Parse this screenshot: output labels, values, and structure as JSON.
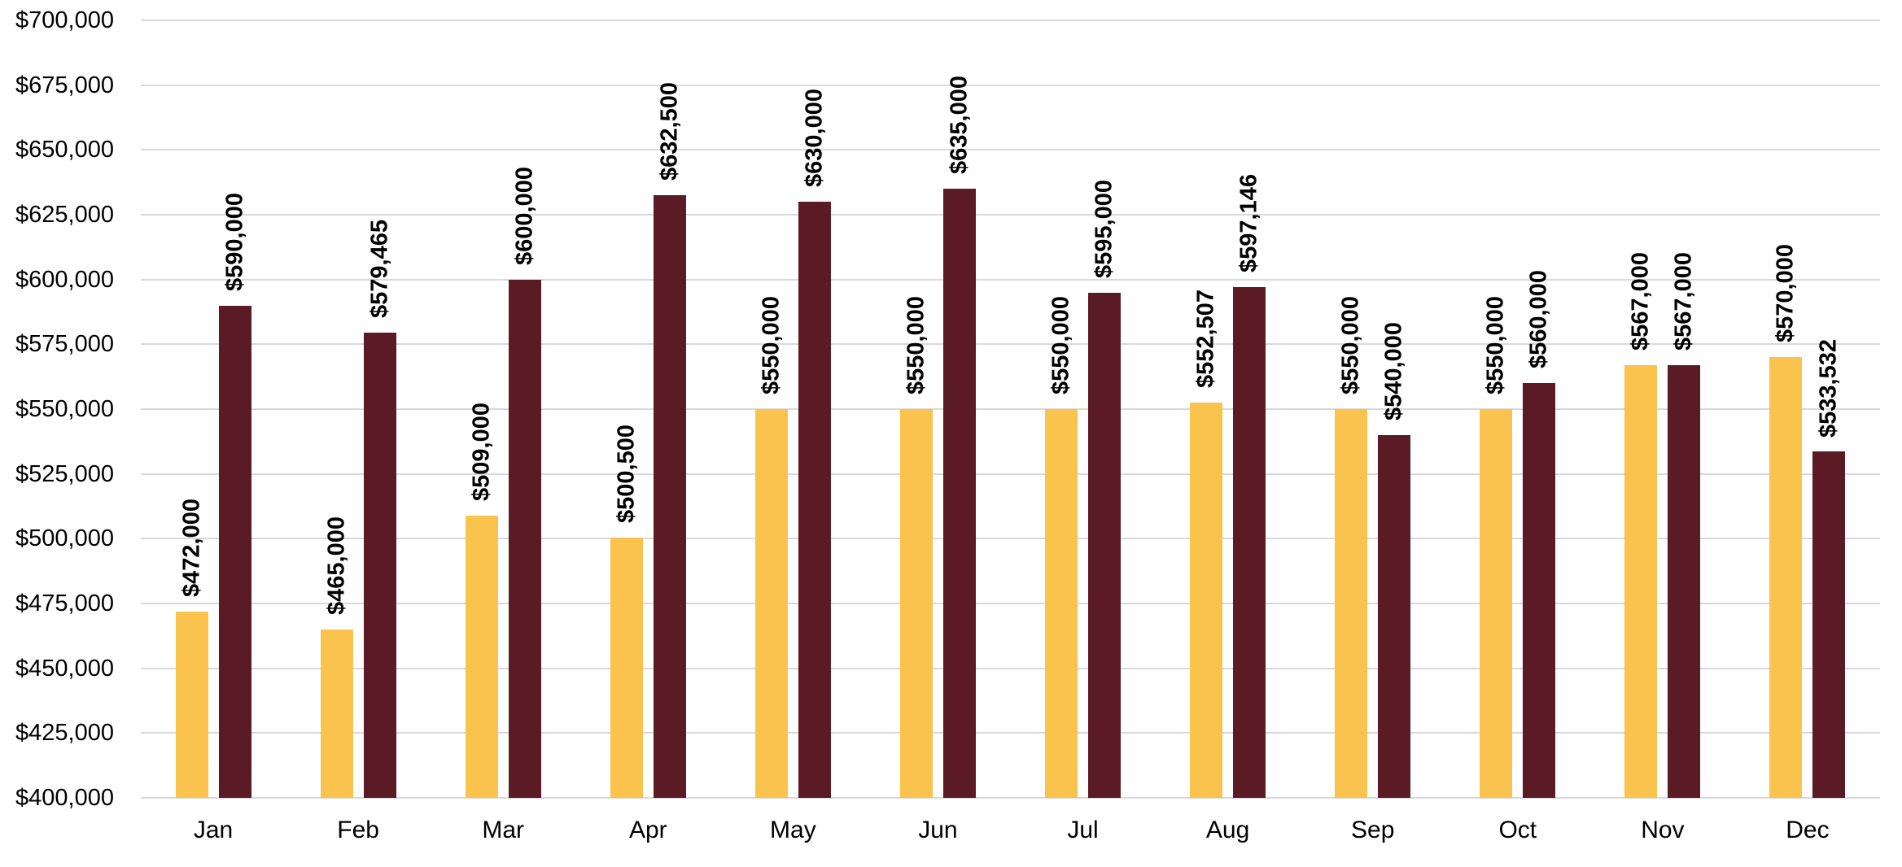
{
  "chart_data": {
    "type": "bar",
    "title": "",
    "xlabel": "",
    "ylabel": "",
    "legend": "none",
    "grid": "horizontal",
    "categories": [
      "Jan",
      "Feb",
      "Mar",
      "Apr",
      "May",
      "Jun",
      "Jul",
      "Aug",
      "Sep",
      "Oct",
      "Nov",
      "Dec"
    ],
    "series": [
      {
        "name": "gold",
        "color": "#F9C34D",
        "values": [
          472000,
          465000,
          509000,
          500500,
          550000,
          550000,
          550000,
          552507,
          550000,
          550000,
          567000,
          570000
        ],
        "labels": [
          "$472,000",
          "$465,000",
          "$509,000",
          "$500,500",
          "$550,000",
          "$550,000",
          "$550,000",
          "$552,507",
          "$550,000",
          "$550,000",
          "$567,000",
          "$570,000"
        ]
      },
      {
        "name": "maroon",
        "color": "#5A1B24",
        "values": [
          590000,
          579465,
          600000,
          632500,
          630000,
          635000,
          595000,
          597146,
          540000,
          560000,
          567000,
          533532
        ],
        "labels": [
          "$590,000",
          "$579,465",
          "$600,000",
          "$632,500",
          "$630,000",
          "$635,000",
          "$595,000",
          "$597,146",
          "$540,000",
          "$560,000",
          "$567,000",
          "$533,532"
        ]
      }
    ],
    "y_axis": {
      "min": 400000,
      "max": 700000,
      "step": 25000,
      "tick_labels": [
        "$700,000",
        "$675,000",
        "$650,000",
        "$625,000",
        "$600,000",
        "$575,000",
        "$550,000",
        "$525,000",
        "$500,000",
        "$475,000",
        "$450,000",
        "$425,000",
        "$400,000"
      ]
    },
    "colors": {
      "gridline": "#D9D9D9",
      "axis_line": "#D9D9D9",
      "text": "#000000",
      "background": "#FFFFFF"
    }
  }
}
